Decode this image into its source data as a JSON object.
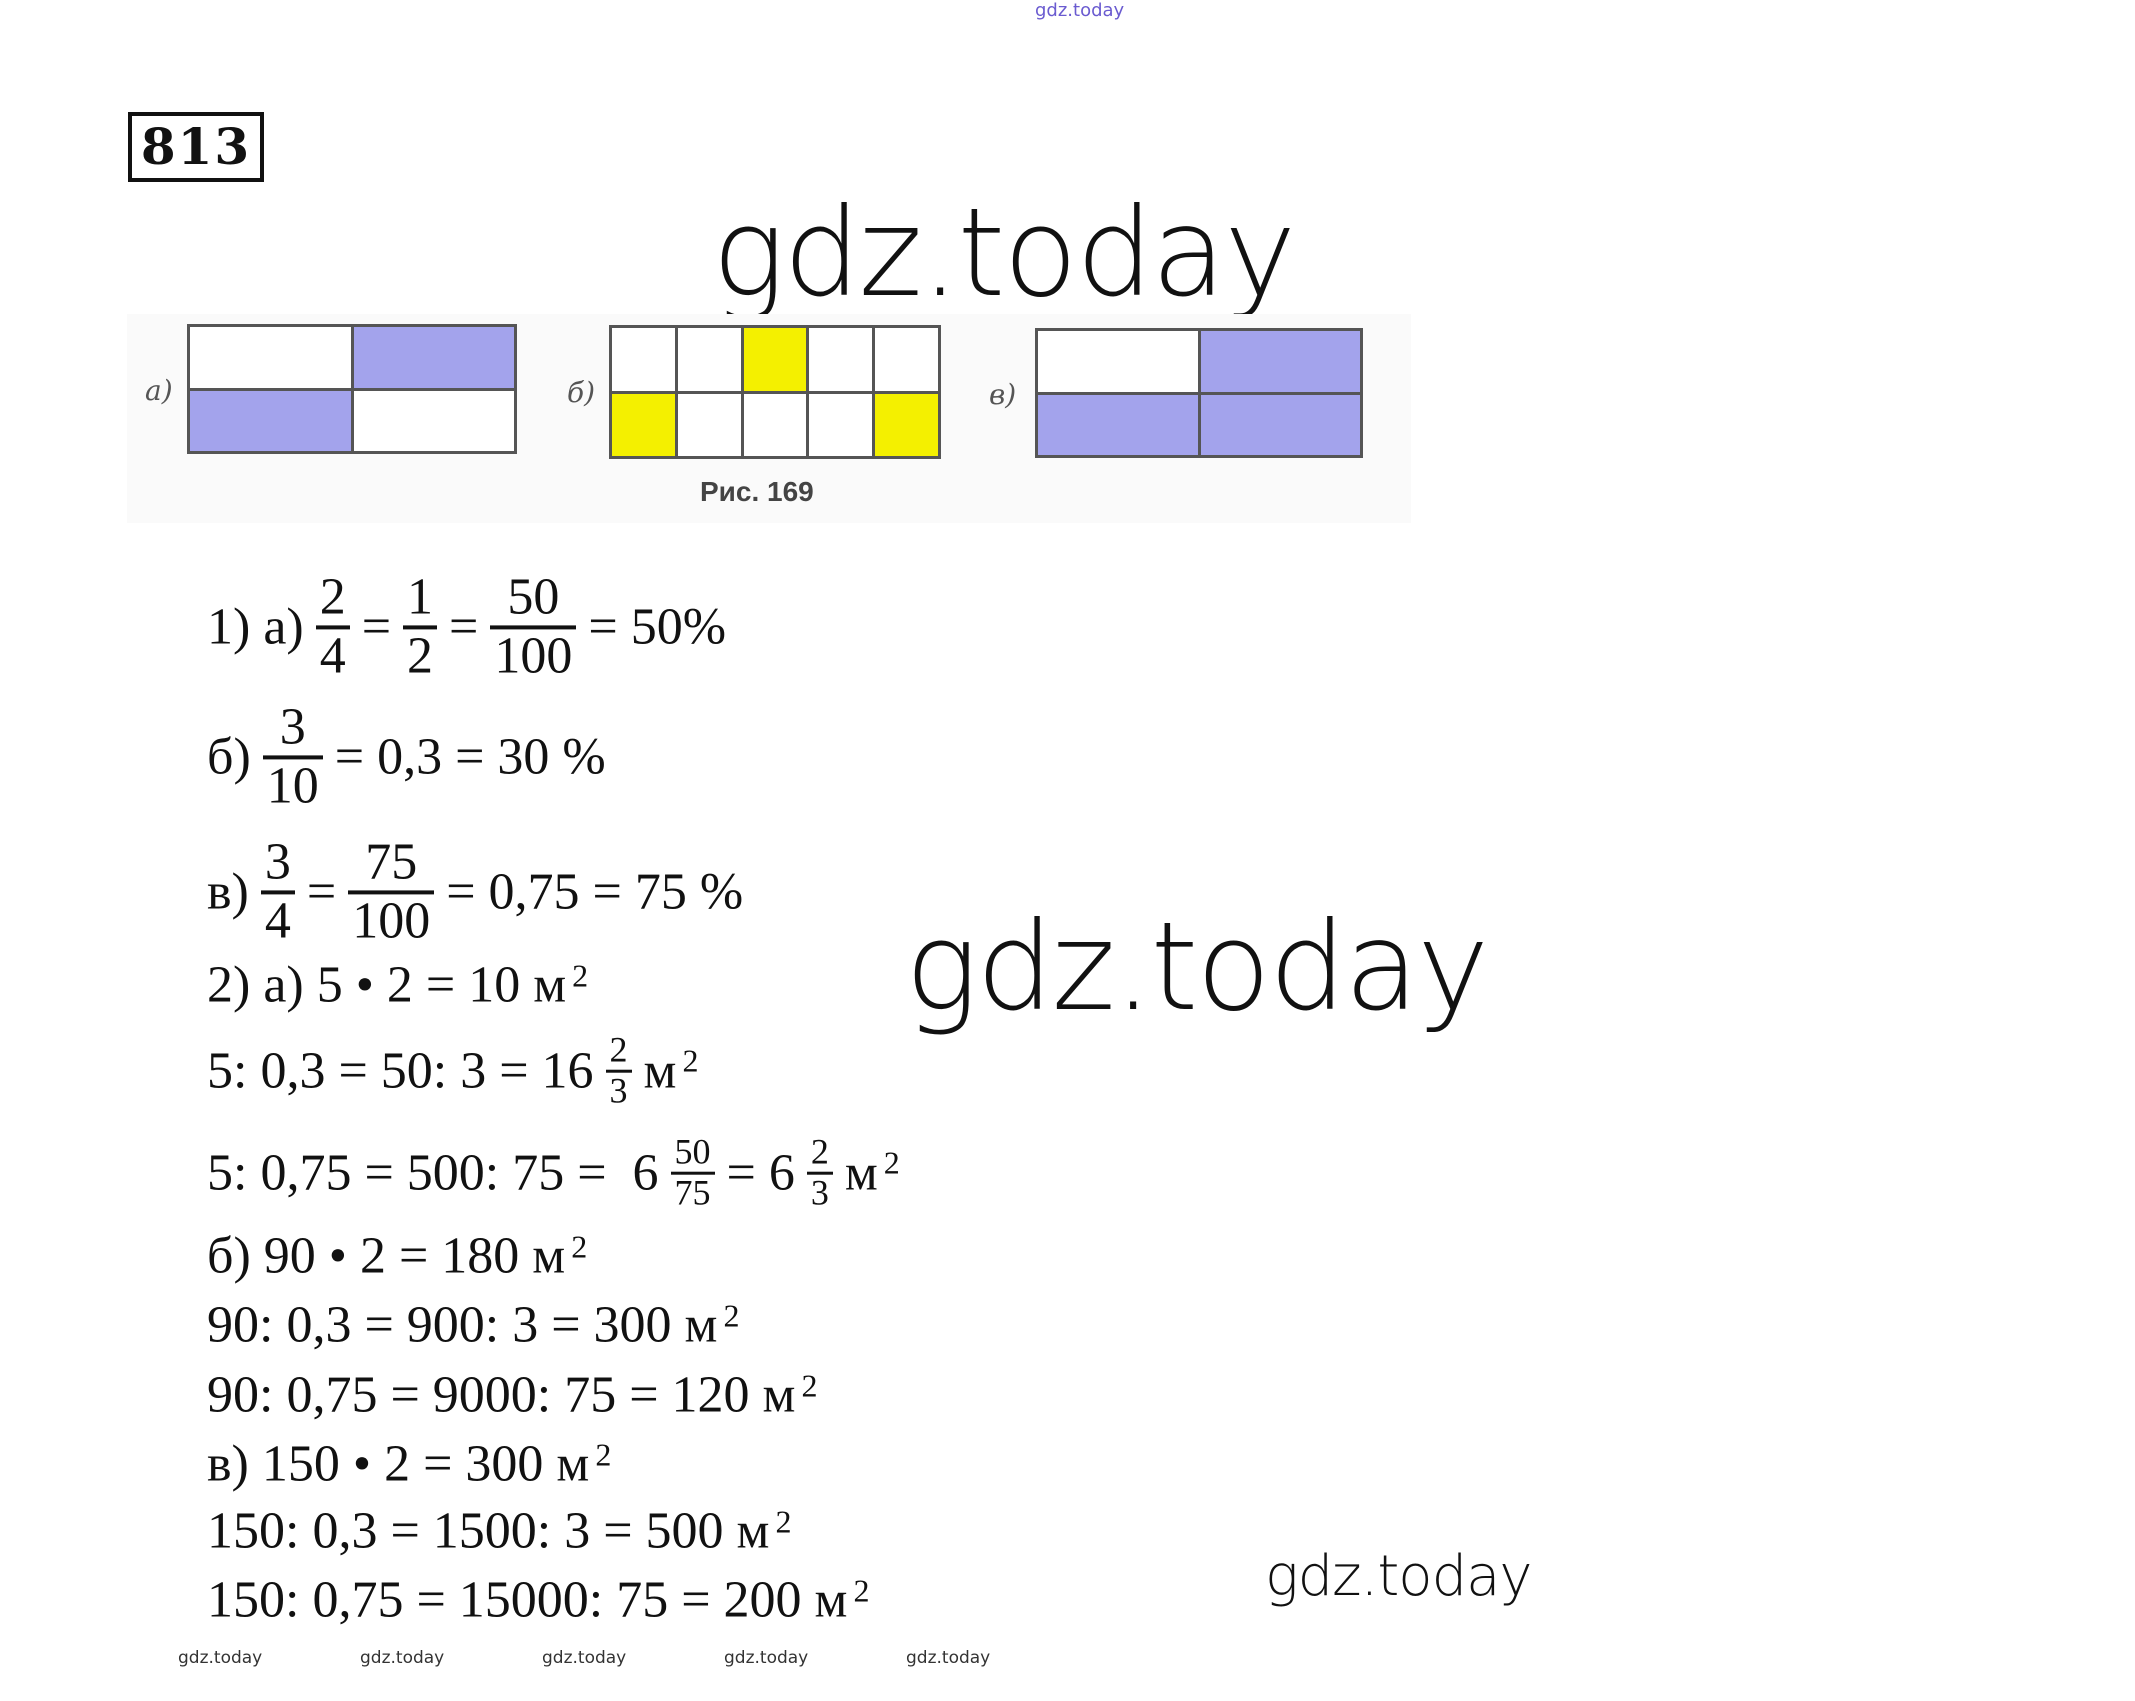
{
  "watermarks": {
    "top": "gdz.today",
    "large": [
      "gdz.today",
      "gdz.today"
    ],
    "bottom_right": "gdz.today",
    "small_row": [
      "gdz.today",
      "gdz.today",
      "gdz.today",
      "gdz.today",
      "gdz.today"
    ]
  },
  "problem_number": "813",
  "figure": {
    "caption": "Рис. 169",
    "fill_colors": {
      "blue": "#a3a3ec",
      "yellow": "#f4f000"
    },
    "panels": [
      {
        "label": "а)",
        "rows": 2,
        "cols": 2,
        "cells": [
          "w",
          "b",
          "b",
          "w"
        ]
      },
      {
        "label": "б)",
        "rows": 2,
        "cols": 5,
        "cells": [
          "w",
          "w",
          "y",
          "w",
          "w",
          "y",
          "w",
          "w",
          "w",
          "y"
        ]
      },
      {
        "label": "в)",
        "rows": 2,
        "cols": 2,
        "cells": [
          "w",
          "b",
          "b",
          "b"
        ]
      }
    ]
  },
  "solution": [
    [
      {
        "t": "1) а)"
      },
      {
        "n": "2",
        "d": "4"
      },
      {
        "t": "="
      },
      {
        "n": "1",
        "d": "2"
      },
      {
        "t": "="
      },
      {
        "n": "50",
        "d": "100"
      },
      {
        "t": "= 50%"
      }
    ],
    [
      {
        "t": "б)"
      },
      {
        "n": "3",
        "d": "10"
      },
      {
        "t": "= 0,3 = 30 %"
      }
    ],
    [
      {
        "t": "в)"
      },
      {
        "n": "3",
        "d": "4"
      },
      {
        "t": "="
      },
      {
        "n": "75",
        "d": "100"
      },
      {
        "t": "= 0,75 = 75 %"
      }
    ],
    [
      {
        "t": "2) а) 5 • 2 = 10 м"
      },
      {
        "sup": "2"
      }
    ],
    [
      {
        "t": "5: 0,3 = 50: 3 = 16"
      },
      {
        "n": "2",
        "d": "3",
        "small": true
      },
      {
        "t": "м"
      },
      {
        "sup": "2"
      }
    ],
    [
      {
        "t": "5: 0,75 = 500: 75 =  6"
      },
      {
        "n": "50",
        "d": "75",
        "small": true
      },
      {
        "t": "= 6"
      },
      {
        "n": "2",
        "d": "3",
        "small": true
      },
      {
        "t": "м"
      },
      {
        "sup": "2"
      }
    ],
    [
      {
        "t": "б) 90 • 2 = 180 м"
      },
      {
        "sup": "2"
      }
    ],
    [
      {
        "t": "90: 0,3 = 900: 3 = 300 м"
      },
      {
        "sup": "2"
      }
    ],
    [
      {
        "t": "90: 0,75 = 9000: 75 = 120 м"
      },
      {
        "sup": "2"
      }
    ],
    [
      {
        "t": "в) 150 • 2 = 300 м"
      },
      {
        "sup": "2"
      }
    ],
    [
      {
        "t": "150: 0,3 = 1500: 3 = 500 м"
      },
      {
        "sup": "2"
      }
    ],
    [
      {
        "t": "150: 0,75 = 15000: 75 = 200 м"
      },
      {
        "sup": "2"
      }
    ]
  ]
}
